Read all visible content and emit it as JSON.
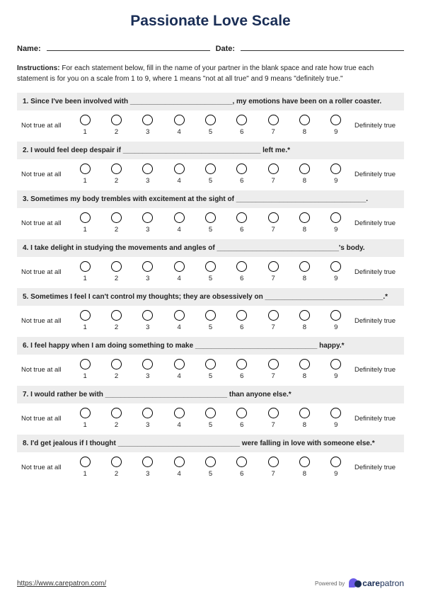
{
  "title": "Passionate Love Scale",
  "name_label": "Name:",
  "date_label": "Date:",
  "instructions_label": "Instructions:",
  "instructions_text": " For each statement below, fill in the name of your partner in the blank space and rate how true each statement is for you on a scale from 1 to 9, where 1 means \"not at all true\" and 9 means \"definitely true.\"",
  "left_anchor": "Not true at all",
  "right_anchor": "Definitely true",
  "scale_values": [
    "1",
    "2",
    "3",
    "4",
    "5",
    "6",
    "7",
    "8",
    "9"
  ],
  "questions": [
    "1. Since I've been involved with __________________________, my emotions have been on a roller coaster.",
    "2. I would feel deep despair if ___________________________________ left me.*",
    "3. Sometimes my body trembles with excitement at the sight of _________________________________.",
    "4. I take delight in studying the movements and angles of _______________________________'s body.",
    "5. Sometimes I feel I can't control my thoughts; they are obsessively on ______________________________.*",
    "6. I feel happy when I am doing something to make _______________________________ happy.*",
    "7. I would rather be with _______________________________ than anyone else.*",
    "8. I'd get jealous if I thought _______________________________ were falling in love with someone else.*"
  ],
  "footer_url": "https://www.carepatron.com/",
  "powered_by": "Powered by",
  "logo_bold": "care",
  "logo_normal": "patron",
  "colors": {
    "title": "#1a2e56",
    "question_bg": "#ededed",
    "radio_border": "#000000",
    "text": "#222222",
    "logo_purple": "#6b5ce7",
    "logo_dark": "#1a2e56"
  }
}
